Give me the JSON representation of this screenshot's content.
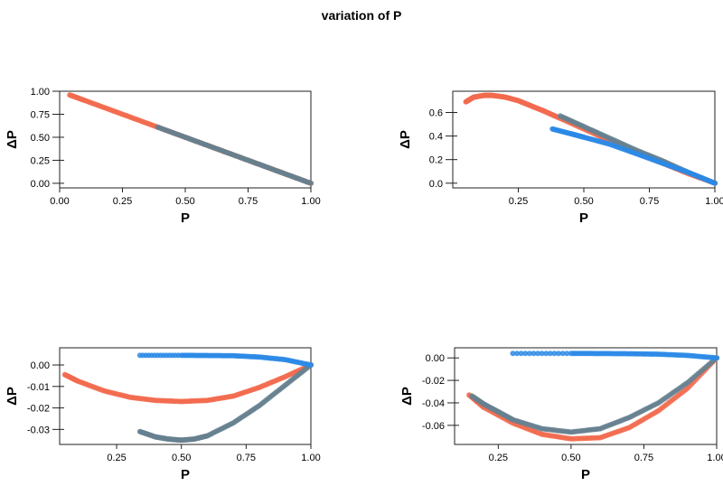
{
  "title": "variation of P",
  "colors": {
    "red": "#f26b4f",
    "gray": "#66808f",
    "blue": "#2b8ae6"
  },
  "chart_data": [
    {
      "type": "scatter",
      "xlabel": "P",
      "ylabel": "ΔP",
      "xlim": [
        0.0,
        1.0
      ],
      "ylim": [
        -0.05,
        1.0
      ],
      "xticks": [
        "0.00",
        "0.25",
        "0.50",
        "0.75",
        "1.00"
      ],
      "yticks": [
        "0.00",
        "0.25",
        "0.50",
        "0.75",
        "1.00"
      ],
      "series": [
        {
          "color": "red",
          "points": [
            [
              0.04,
              0.96
            ],
            [
              0.1,
              0.9
            ],
            [
              0.2,
              0.8
            ],
            [
              0.3,
              0.7
            ],
            [
              0.4,
              0.6
            ],
            [
              0.5,
              0.5
            ],
            [
              0.6,
              0.4
            ],
            [
              0.7,
              0.3
            ],
            [
              0.8,
              0.2
            ],
            [
              0.9,
              0.1
            ],
            [
              1.0,
              0.0
            ]
          ]
        },
        {
          "color": "gray",
          "points": [
            [
              0.39,
              0.61
            ],
            [
              0.5,
              0.5
            ],
            [
              0.6,
              0.4
            ],
            [
              0.7,
              0.3
            ],
            [
              0.8,
              0.2
            ],
            [
              0.9,
              0.1
            ],
            [
              1.0,
              0.0
            ]
          ]
        }
      ]
    },
    {
      "type": "scatter",
      "xlabel": "P",
      "ylabel": "ΔP",
      "xlim": [
        0.0,
        1.0
      ],
      "ylim": [
        -0.04,
        0.78
      ],
      "xticks": [
        "0.25",
        "0.50",
        "0.75",
        "1.00"
      ],
      "yticks": [
        "0.0",
        "0.2",
        "0.4",
        "0.6"
      ],
      "series": [
        {
          "color": "red",
          "points": [
            [
              0.05,
              0.69
            ],
            [
              0.08,
              0.73
            ],
            [
              0.12,
              0.745
            ],
            [
              0.15,
              0.745
            ],
            [
              0.2,
              0.73
            ],
            [
              0.25,
              0.7
            ],
            [
              0.3,
              0.655
            ],
            [
              0.35,
              0.61
            ],
            [
              0.4,
              0.56
            ],
            [
              0.5,
              0.46
            ],
            [
              0.6,
              0.36
            ],
            [
              0.7,
              0.26
            ],
            [
              0.8,
              0.17
            ],
            [
              0.9,
              0.08
            ],
            [
              1.0,
              0.0
            ]
          ]
        },
        {
          "color": "gray",
          "points": [
            [
              0.41,
              0.57
            ],
            [
              0.5,
              0.48
            ],
            [
              0.6,
              0.38
            ],
            [
              0.7,
              0.28
            ],
            [
              0.8,
              0.19
            ],
            [
              0.9,
              0.09
            ],
            [
              1.0,
              0.0
            ]
          ]
        },
        {
          "color": "blue",
          "points": [
            [
              0.38,
              0.46
            ],
            [
              0.45,
              0.42
            ],
            [
              0.5,
              0.39
            ],
            [
              0.6,
              0.33
            ],
            [
              0.7,
              0.25
            ],
            [
              0.8,
              0.17
            ],
            [
              0.9,
              0.09
            ],
            [
              1.0,
              0.0
            ]
          ]
        }
      ]
    },
    {
      "type": "scatter",
      "xlabel": "P",
      "ylabel": "ΔP",
      "xlim": [
        0.03,
        1.0
      ],
      "ylim": [
        -0.037,
        0.008
      ],
      "xticks": [
        "0.25",
        "0.50",
        "0.75",
        "1.00"
      ],
      "yticks": [
        "0.00",
        "-0.01",
        "-0.02",
        "-0.03"
      ],
      "series": [
        {
          "color": "red",
          "points": [
            [
              0.05,
              -0.0045
            ],
            [
              0.1,
              -0.0075
            ],
            [
              0.2,
              -0.012
            ],
            [
              0.3,
              -0.015
            ],
            [
              0.4,
              -0.0165
            ],
            [
              0.5,
              -0.017
            ],
            [
              0.6,
              -0.0165
            ],
            [
              0.7,
              -0.0145
            ],
            [
              0.8,
              -0.0105
            ],
            [
              0.9,
              -0.0055
            ],
            [
              1.0,
              0.0
            ]
          ]
        },
        {
          "color": "gray",
          "points": [
            [
              0.34,
              -0.031
            ],
            [
              0.4,
              -0.0335
            ],
            [
              0.45,
              -0.0345
            ],
            [
              0.5,
              -0.035
            ],
            [
              0.55,
              -0.0345
            ],
            [
              0.6,
              -0.033
            ],
            [
              0.7,
              -0.027
            ],
            [
              0.8,
              -0.019
            ],
            [
              0.9,
              -0.0095
            ],
            [
              1.0,
              0.0
            ]
          ]
        },
        {
          "color": "blue",
          "points": [
            [
              0.34,
              0.0045
            ],
            [
              0.5,
              0.0045
            ],
            [
              0.6,
              0.0044
            ],
            [
              0.7,
              0.0043
            ],
            [
              0.8,
              0.0037
            ],
            [
              0.9,
              0.0025
            ],
            [
              1.0,
              0.0
            ]
          ]
        }
      ]
    },
    {
      "type": "scatter",
      "xlabel": "P",
      "ylabel": "ΔP",
      "xlim": [
        0.1,
        1.0
      ],
      "ylim": [
        -0.077,
        0.009
      ],
      "xticks": [
        "0.25",
        "0.50",
        "0.75",
        "1.00"
      ],
      "yticks": [
        "0.00",
        "-0.02",
        "-0.04",
        "-0.06"
      ],
      "series": [
        {
          "color": "red",
          "points": [
            [
              0.15,
              -0.033
            ],
            [
              0.2,
              -0.044
            ],
            [
              0.3,
              -0.058
            ],
            [
              0.4,
              -0.068
            ],
            [
              0.5,
              -0.072
            ],
            [
              0.6,
              -0.071
            ],
            [
              0.7,
              -0.062
            ],
            [
              0.8,
              -0.047
            ],
            [
              0.9,
              -0.027
            ],
            [
              1.0,
              0.0
            ]
          ]
        },
        {
          "color": "gray",
          "points": [
            [
              0.16,
              -0.034
            ],
            [
              0.2,
              -0.041
            ],
            [
              0.25,
              -0.048
            ],
            [
              0.3,
              -0.055
            ],
            [
              0.4,
              -0.063
            ],
            [
              0.5,
              -0.066
            ],
            [
              0.6,
              -0.063
            ],
            [
              0.7,
              -0.053
            ],
            [
              0.8,
              -0.04
            ],
            [
              0.9,
              -0.022
            ],
            [
              1.0,
              0.0
            ]
          ]
        },
        {
          "color": "blue",
          "points": [
            [
              0.3,
              0.004
            ],
            [
              0.5,
              0.004
            ],
            [
              0.6,
              0.0039
            ],
            [
              0.7,
              0.0037
            ],
            [
              0.8,
              0.0033
            ],
            [
              0.9,
              0.0022
            ],
            [
              1.0,
              0.0
            ]
          ]
        }
      ]
    }
  ]
}
